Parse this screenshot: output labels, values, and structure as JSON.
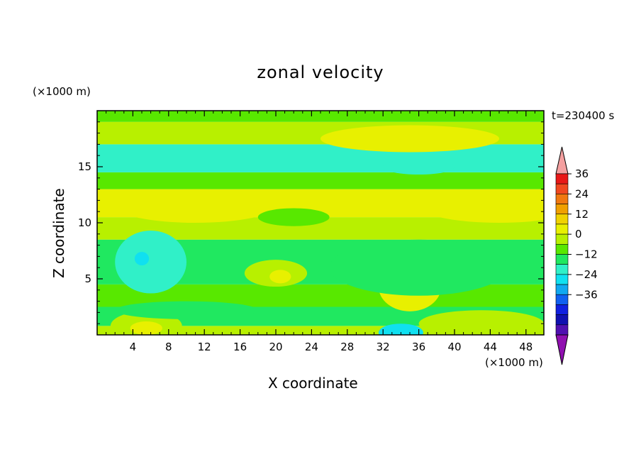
{
  "chart_data": {
    "type": "heatmap",
    "title": "zonal velocity",
    "time_label": "t=230400 s",
    "xlabel": "X coordinate",
    "ylabel": "Z coordinate",
    "x_unit": "(×1000 m)",
    "y_unit": "(×1000 m)",
    "xlim": [
      0,
      50
    ],
    "ylim": [
      0,
      20
    ],
    "x_ticks": [
      4,
      8,
      12,
      16,
      20,
      24,
      28,
      32,
      36,
      40,
      44,
      48
    ],
    "y_ticks": [
      5,
      10,
      15
    ],
    "colorbar": {
      "ticks": [
        36,
        24,
        12,
        0,
        -12,
        -24,
        -36
      ],
      "levels": [
        42,
        36,
        30,
        24,
        18,
        12,
        6,
        0,
        -6,
        -12,
        -18,
        -24,
        -30,
        -36,
        -42
      ],
      "colors": [
        "#f4a0a0",
        "#e81818",
        "#f04820",
        "#f07810",
        "#f0a000",
        "#f0d200",
        "#e8f000",
        "#b8f000",
        "#58e800",
        "#20e860",
        "#30f0c8",
        "#10e0f0",
        "#10a8f0",
        "#1060f0",
        "#1020e0",
        "#1010b0",
        "#5010b0",
        "#9010b0"
      ]
    },
    "bands": [
      {
        "z": [
          0,
          0.8
        ],
        "u": 2
      },
      {
        "z": [
          0.8,
          2.5
        ],
        "u": -8
      },
      {
        "z": [
          2.5,
          4.5
        ],
        "u": 0
      },
      {
        "z": [
          4.5,
          8.5
        ],
        "u": -10
      },
      {
        "z": [
          8.5,
          10.5
        ],
        "u": 2
      },
      {
        "z": [
          10.5,
          13
        ],
        "u": 9
      },
      {
        "z": [
          13,
          14.5
        ],
        "u": 0
      },
      {
        "z": [
          14.5,
          17
        ],
        "u": -12
      },
      {
        "z": [
          17,
          19
        ],
        "u": 2
      },
      {
        "z": [
          19,
          20
        ],
        "u": -4
      }
    ],
    "features": [
      {
        "x": 6,
        "z": 6.5,
        "rx": 4,
        "rz": 2.8,
        "u": -14
      },
      {
        "x": 5,
        "z": 6.8,
        "rx": 0.8,
        "rz": 0.6,
        "u": -20
      },
      {
        "x": 5.5,
        "z": 0.8,
        "rx": 4,
        "rz": 1.3,
        "u": 6
      },
      {
        "x": 5.5,
        "z": 0.6,
        "rx": 1.8,
        "rz": 0.6,
        "u": 12
      },
      {
        "x": 20,
        "z": 5.5,
        "rx": 3.5,
        "rz": 1.2,
        "u": 4
      },
      {
        "x": 20.5,
        "z": 5.2,
        "rx": 1.2,
        "rz": 0.6,
        "u": 8
      },
      {
        "x": 35,
        "z": 4.3,
        "rx": 3.5,
        "rz": 2.2,
        "u": 8
      },
      {
        "x": 35,
        "z": 4.0,
        "rx": 1.5,
        "rz": 0.8,
        "u": 12
      },
      {
        "x": 34,
        "z": 0.2,
        "rx": 2.5,
        "rz": 0.8,
        "u": -22
      },
      {
        "x": 43,
        "z": 1.0,
        "rx": 7,
        "rz": 1.2,
        "u": 4
      },
      {
        "x": 11,
        "z": 11.5,
        "rx": 9,
        "rz": 1.5,
        "u": 12
      },
      {
        "x": 45,
        "z": 11.5,
        "rx": 9,
        "rz": 1.5,
        "u": 12
      },
      {
        "x": 35,
        "z": 17.5,
        "rx": 10,
        "rz": 1.2,
        "u": 9
      },
      {
        "x": 36,
        "z": 15,
        "rx": 4,
        "rz": 0.7,
        "u": -14
      },
      {
        "x": 22,
        "z": 10.5,
        "rx": 4,
        "rz": 0.8,
        "u": -3
      },
      {
        "x": 36,
        "z": 6,
        "rx": 10,
        "rz": 2.5,
        "u": -8
      },
      {
        "x": 10,
        "z": 2.2,
        "rx": 8,
        "rz": 0.8,
        "u": -10
      }
    ]
  }
}
